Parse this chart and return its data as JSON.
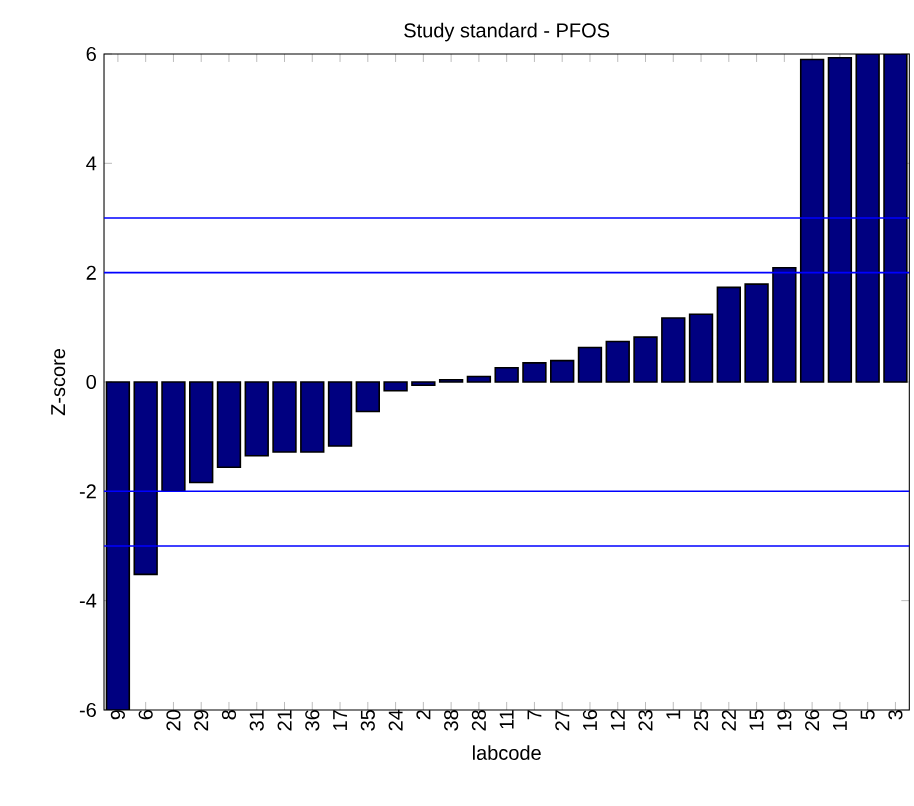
{
  "chart_data": {
    "type": "bar",
    "title": "Study standard - PFOS",
    "xlabel": "labcode",
    "ylabel": "Z-score",
    "categories": [
      "9",
      "6",
      "20",
      "29",
      "8",
      "31",
      "21",
      "36",
      "17",
      "35",
      "24",
      "2",
      "38",
      "28",
      "11",
      "7",
      "27",
      "16",
      "12",
      "23",
      "1",
      "25",
      "22",
      "15",
      "19",
      "26",
      "10",
      "5",
      "3"
    ],
    "values": [
      -6,
      -3.52,
      -1.99,
      -1.84,
      -1.56,
      -1.35,
      -1.28,
      -1.28,
      -1.17,
      -0.54,
      -0.16,
      -0.06,
      0.04,
      0.1,
      0.26,
      0.35,
      0.39,
      0.63,
      0.74,
      0.82,
      1.17,
      1.24,
      1.73,
      1.79,
      2.09,
      5.9,
      5.93,
      6,
      6
    ],
    "color": "#000080",
    "ylim": [
      -6,
      6
    ],
    "yticks": [
      -6,
      -4,
      -2,
      0,
      2,
      4,
      6
    ],
    "ref_lines": [
      {
        "axis": "y",
        "value": 3,
        "color": "#0000ff"
      },
      {
        "axis": "y",
        "value": 2,
        "color": "#0000ff"
      },
      {
        "axis": "y",
        "value": -2,
        "color": "#0000ff"
      },
      {
        "axis": "y",
        "value": -3,
        "color": "#0000ff"
      }
    ],
    "grid": false
  }
}
